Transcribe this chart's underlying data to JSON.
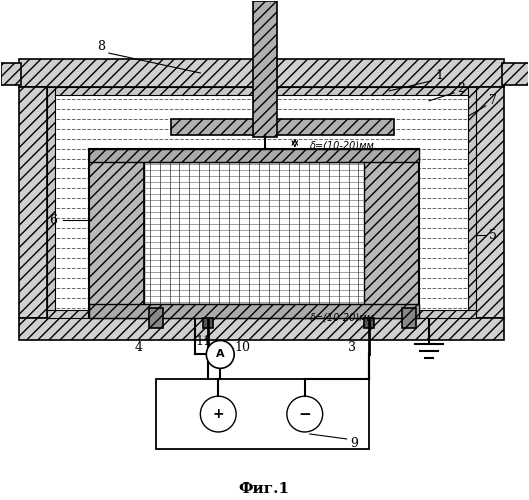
{
  "title": "Фиг.1",
  "background_color": "#ffffff",
  "fig_width": 5.29,
  "fig_height": 5.0,
  "dpi": 100,
  "delta_top": "δ=(10-20)мм",
  "delta_bot": "δ=(10-20)мм"
}
